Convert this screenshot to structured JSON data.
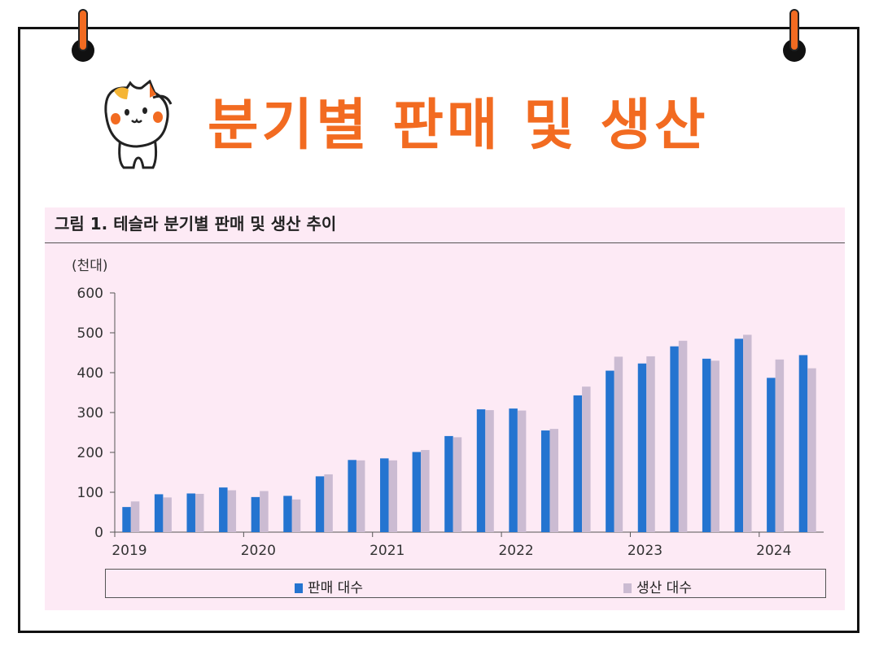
{
  "headline": "분기별 판매 및 생산",
  "figure": {
    "title": "그림 1.  테슬라 분기별 판매 및 생산 추이"
  },
  "colors": {
    "accent": "#f26b21",
    "sales": "#2474d0",
    "production": "#cbbbd2",
    "panel": "#fdeaf5"
  },
  "chart_data": {
    "type": "bar",
    "unit_label": "(천대)",
    "ylim": [
      0,
      600
    ],
    "yticks": [
      0,
      100,
      200,
      300,
      400,
      500,
      600
    ],
    "categories": [
      "2019 Q1",
      "2019 Q2",
      "2019 Q3",
      "2019 Q4",
      "2020 Q1",
      "2020 Q2",
      "2020 Q3",
      "2020 Q4",
      "2021 Q1",
      "2021 Q2",
      "2021 Q3",
      "2021 Q4",
      "2022 Q1",
      "2022 Q2",
      "2022 Q3",
      "2022 Q4",
      "2023 Q1",
      "2023 Q2",
      "2023 Q3",
      "2023 Q4",
      "2024 Q1",
      "2024 Q2"
    ],
    "xtick_labels": [
      {
        "label": "2019",
        "index": 0
      },
      {
        "label": "2020",
        "index": 4
      },
      {
        "label": "2021",
        "index": 8
      },
      {
        "label": "2022",
        "index": 12
      },
      {
        "label": "2023",
        "index": 16
      },
      {
        "label": "2024",
        "index": 20
      }
    ],
    "series": [
      {
        "name": "판매 대수",
        "color": "#2474d0",
        "values": [
          63,
          95,
          97,
          112,
          88,
          91,
          140,
          181,
          185,
          201,
          241,
          308,
          310,
          255,
          343,
          405,
          423,
          466,
          435,
          485,
          387,
          444
        ]
      },
      {
        "name": "생산 대수",
        "color": "#cbbbd2",
        "values": [
          77,
          87,
          96,
          105,
          103,
          82,
          145,
          180,
          180,
          206,
          238,
          306,
          305,
          259,
          365,
          440,
          441,
          480,
          430,
          495,
          433,
          411
        ]
      }
    ],
    "legend_position": "bottom",
    "grid": false
  }
}
